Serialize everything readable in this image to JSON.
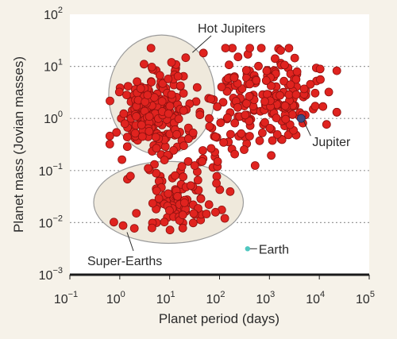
{
  "chart_data": {
    "type": "scatter",
    "title": "",
    "xlabel": "Planet period (days)",
    "ylabel": "Planet mass (Jovian masses)",
    "x_scale": "log",
    "y_scale": "log",
    "xlim": [
      0.1,
      100000
    ],
    "ylim": [
      0.001,
      100
    ],
    "grid": "horizontal dotted lines",
    "colors": {
      "points": "#e0231f",
      "point_edge": "#8e1210",
      "jupiter": "#3f4a7e",
      "earth": "#4fc7c0",
      "ellipse_fill": "#efe9dc",
      "ellipse_edge": "#9b9b9b",
      "plot_bg": "#ffffff",
      "page_bg": "#f6f2e9"
    },
    "x_ticks": [
      {
        "base": "10",
        "exp": "−1",
        "value": 0.1
      },
      {
        "base": "10",
        "exp": "0",
        "value": 1
      },
      {
        "base": "10",
        "exp": "1",
        "value": 10
      },
      {
        "base": "10",
        "exp": "2",
        "value": 100
      },
      {
        "base": "10",
        "exp": "3",
        "value": 1000
      },
      {
        "base": "10",
        "exp": "4",
        "value": 10000
      },
      {
        "base": "10",
        "exp": "5",
        "value": 100000
      }
    ],
    "y_ticks": [
      {
        "base": "10",
        "exp": "−3",
        "value": 0.001
      },
      {
        "base": "10",
        "exp": "−2",
        "value": 0.01
      },
      {
        "base": "10",
        "exp": "−1",
        "value": 0.1
      },
      {
        "base": "10",
        "exp": "0",
        "value": 1
      },
      {
        "base": "10",
        "exp": "1",
        "value": 10
      },
      {
        "base": "10",
        "exp": "2",
        "value": 100
      }
    ],
    "regions": [
      {
        "label": "Hot Jupiters",
        "x_range": [
          0.6,
          80
        ],
        "y_range": [
          0.2,
          40
        ]
      },
      {
        "label": "Super-Earths",
        "x_range": [
          0.3,
          300
        ],
        "y_range": [
          0.004,
          0.15
        ]
      }
    ],
    "highlighted": [
      {
        "label": "Jupiter",
        "x": 4333,
        "y": 1.0
      },
      {
        "label": "Earth",
        "x": 365,
        "y": 0.00315
      }
    ],
    "point_count": 560
  }
}
